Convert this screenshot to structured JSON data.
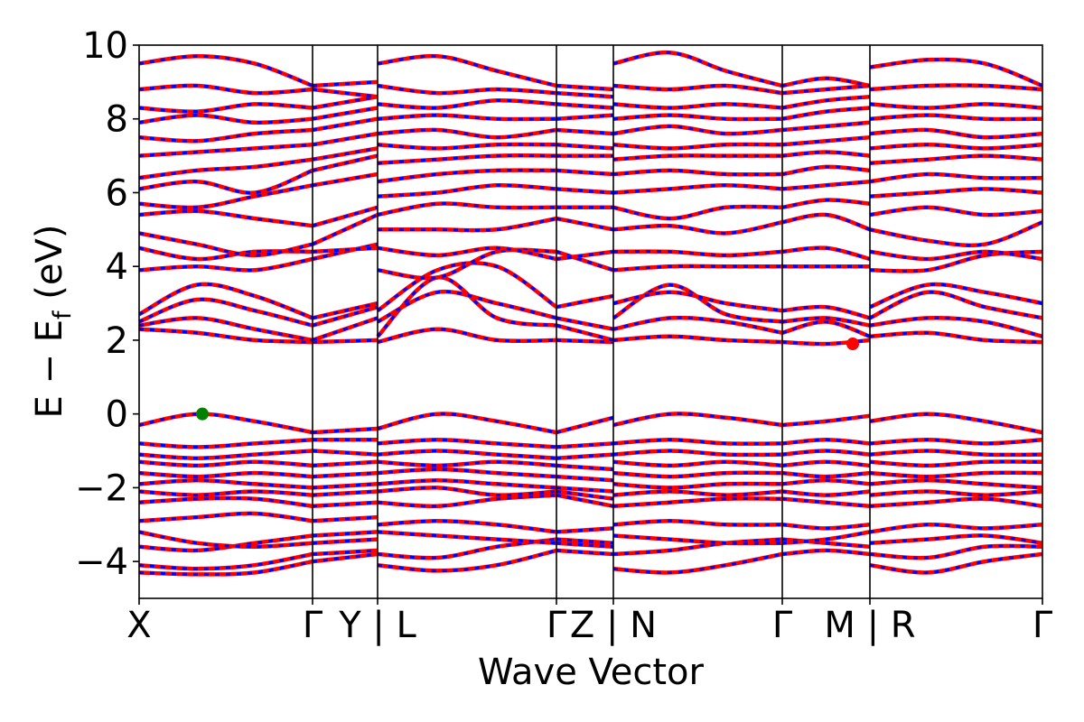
{
  "chart_data": {
    "type": "line",
    "title": "",
    "xlabel": "Wave Vector",
    "ylabel": "E − E",
    "ylabel_sub": "f",
    "ylabel_unit": " (eV)",
    "ylim": [
      -5,
      10
    ],
    "yticks": [
      -4,
      -2,
      0,
      2,
      4,
      6,
      8,
      10
    ],
    "ytick_labels": [
      "−4",
      "−2",
      "0",
      "2",
      "4",
      "6",
      "8",
      "10"
    ],
    "xlim": [
      0,
      1
    ],
    "kpath_breaks": [
      0,
      0.192,
      0.264,
      0.462,
      0.525,
      0.712,
      0.809,
      1
    ],
    "xtick_positions": [
      0,
      0.192,
      0.264,
      0.462,
      0.525,
      0.712,
      0.809,
      1
    ],
    "xtick_labels": [
      "X",
      "Γ",
      "Y | L",
      "Γ",
      "Z | N",
      "Γ",
      "M | R",
      "Γ"
    ],
    "grid": false,
    "series_style": {
      "up_color": "#ff0000",
      "down_color": "#0000ff",
      "down_dash": "dashed"
    },
    "valence_band_max": {
      "x": 0.07,
      "y": 0.0,
      "color": "#008000"
    },
    "conduction_band_min": {
      "x": 0.79,
      "y": 1.9,
      "color": "#ff0000"
    },
    "segments": [
      {
        "x0": 0.0,
        "x1": 0.192,
        "bands": [
          [
            -4.3,
            -4.35,
            -4.3,
            -4.0
          ],
          [
            -4.1,
            -4.2,
            -4.1,
            -3.8
          ],
          [
            -3.6,
            -3.7,
            -3.5,
            -3.3
          ],
          [
            -3.2,
            -3.5,
            -3.6,
            -3.5
          ],
          [
            -2.9,
            -2.8,
            -2.7,
            -2.9
          ],
          [
            -2.4,
            -2.3,
            -2.3,
            -2.5
          ],
          [
            -2.1,
            -2.2,
            -2.1,
            -2.2
          ],
          [
            -1.9,
            -1.8,
            -1.9,
            -2.0
          ],
          [
            -1.6,
            -1.7,
            -1.6,
            -1.7
          ],
          [
            -1.3,
            -1.4,
            -1.3,
            -1.4
          ],
          [
            -1.1,
            -1.2,
            -1.1,
            -1.0
          ],
          [
            -0.8,
            -0.9,
            -0.8,
            -0.7
          ],
          [
            -0.3,
            0.0,
            -0.2,
            -0.5
          ],
          [
            2.3,
            2.2,
            2.0,
            1.95
          ],
          [
            2.4,
            2.6,
            2.3,
            2.0
          ],
          [
            2.5,
            3.1,
            2.8,
            2.4
          ],
          [
            2.7,
            3.5,
            3.2,
            2.6
          ],
          [
            3.9,
            4.0,
            3.9,
            4.2
          ],
          [
            4.5,
            4.2,
            4.4,
            4.4
          ],
          [
            4.9,
            4.6,
            4.3,
            4.6
          ],
          [
            5.4,
            5.5,
            5.3,
            5.1
          ],
          [
            5.7,
            5.6,
            5.9,
            6.2
          ],
          [
            6.1,
            6.3,
            6.0,
            6.6
          ],
          [
            6.4,
            6.6,
            6.7,
            6.9
          ],
          [
            7.0,
            7.1,
            7.2,
            7.3
          ],
          [
            7.5,
            7.4,
            7.6,
            7.7
          ],
          [
            7.9,
            8.1,
            7.9,
            8.0
          ],
          [
            8.3,
            8.2,
            8.4,
            8.3
          ],
          [
            8.8,
            8.9,
            8.7,
            8.8
          ],
          [
            9.5,
            9.7,
            9.5,
            8.9
          ]
        ]
      },
      {
        "x0": 0.192,
        "x1": 0.264,
        "bands": [
          [
            -4.0,
            -3.8
          ],
          [
            -3.8,
            -3.7
          ],
          [
            -3.3,
            -3.2
          ],
          [
            -3.5,
            -3.4
          ],
          [
            -2.9,
            -2.8
          ],
          [
            -2.5,
            -2.4
          ],
          [
            -2.2,
            -2.1
          ],
          [
            -2.0,
            -1.9
          ],
          [
            -1.7,
            -1.6
          ],
          [
            -1.4,
            -1.3
          ],
          [
            -1.0,
            -1.1
          ],
          [
            -0.7,
            -0.7
          ],
          [
            -0.5,
            -0.4
          ],
          [
            1.95,
            2.0
          ],
          [
            2.0,
            2.6
          ],
          [
            2.4,
            2.9
          ],
          [
            2.6,
            3.0
          ],
          [
            4.2,
            4.6
          ],
          [
            4.4,
            4.5
          ],
          [
            4.6,
            5.4
          ],
          [
            5.1,
            5.6
          ],
          [
            6.2,
            6.5
          ],
          [
            6.6,
            7.0
          ],
          [
            6.9,
            7.2
          ],
          [
            7.3,
            7.6
          ],
          [
            7.7,
            8.0
          ],
          [
            8.0,
            8.3
          ],
          [
            8.3,
            8.6
          ],
          [
            8.8,
            8.6
          ],
          [
            8.9,
            9.0
          ]
        ]
      },
      {
        "x0": 0.264,
        "x1": 0.462,
        "bands": [
          [
            -4.1,
            -4.25,
            -4.1,
            -3.7
          ],
          [
            -3.8,
            -3.9,
            -3.6,
            -3.4
          ],
          [
            -3.2,
            -3.3,
            -3.4,
            -3.5
          ],
          [
            -3.0,
            -2.9,
            -3.0,
            -3.2
          ],
          [
            -2.4,
            -2.5,
            -2.3,
            -2.2
          ],
          [
            -2.1,
            -2.0,
            -2.2,
            -2.1
          ],
          [
            -1.9,
            -1.8,
            -1.9,
            -2.0
          ],
          [
            -1.6,
            -1.5,
            -1.6,
            -1.7
          ],
          [
            -1.3,
            -1.4,
            -1.3,
            -1.4
          ],
          [
            -1.1,
            -1.0,
            -1.1,
            -1.2
          ],
          [
            -0.8,
            -0.7,
            -0.8,
            -0.9
          ],
          [
            -0.4,
            0.0,
            -0.2,
            -0.5
          ],
          [
            1.95,
            2.3,
            2.0,
            2.0
          ],
          [
            2.1,
            3.7,
            2.6,
            2.4
          ],
          [
            2.5,
            3.3,
            3.0,
            2.6
          ],
          [
            2.8,
            3.9,
            4.0,
            2.9
          ],
          [
            3.9,
            3.7,
            4.4,
            4.4
          ],
          [
            4.5,
            4.3,
            4.5,
            4.2
          ],
          [
            5.0,
            5.0,
            5.0,
            5.3
          ],
          [
            5.4,
            5.7,
            5.6,
            5.6
          ],
          [
            5.9,
            6.0,
            6.2,
            6.1
          ],
          [
            6.3,
            6.5,
            6.6,
            6.6
          ],
          [
            6.8,
            6.9,
            7.0,
            7.0
          ],
          [
            7.3,
            7.2,
            7.3,
            7.3
          ],
          [
            7.6,
            7.7,
            7.5,
            7.7
          ],
          [
            8.0,
            8.1,
            8.0,
            8.0
          ],
          [
            8.4,
            8.3,
            8.5,
            8.4
          ],
          [
            8.9,
            8.7,
            8.8,
            8.7
          ],
          [
            9.5,
            9.7,
            9.3,
            8.9
          ]
        ]
      },
      {
        "x0": 0.462,
        "x1": 0.525,
        "bands": [
          [
            -3.7,
            -3.8
          ],
          [
            -3.4,
            -3.5
          ],
          [
            -3.5,
            -3.6
          ],
          [
            -3.2,
            -3.1
          ],
          [
            -2.2,
            -2.5
          ],
          [
            -2.1,
            -2.3
          ],
          [
            -2.0,
            -2.1
          ],
          [
            -1.7,
            -1.8
          ],
          [
            -1.4,
            -1.5
          ],
          [
            -1.2,
            -1.1
          ],
          [
            -0.9,
            -0.8
          ],
          [
            -0.5,
            -0.1
          ],
          [
            2.0,
            1.95
          ],
          [
            2.4,
            2.0
          ],
          [
            2.6,
            2.3
          ],
          [
            2.9,
            3.2
          ],
          [
            4.4,
            3.9
          ],
          [
            4.2,
            4.4
          ],
          [
            5.3,
            5.0
          ],
          [
            5.6,
            5.6
          ],
          [
            6.1,
            6.0
          ],
          [
            6.6,
            6.5
          ],
          [
            7.0,
            7.0
          ],
          [
            7.3,
            7.2
          ],
          [
            7.7,
            7.6
          ],
          [
            8.0,
            8.1
          ],
          [
            8.4,
            8.3
          ],
          [
            8.7,
            8.6
          ],
          [
            8.9,
            8.8
          ]
        ]
      },
      {
        "x0": 0.525,
        "x1": 0.712,
        "bands": [
          [
            -4.2,
            -4.3,
            -4.1,
            -3.8
          ],
          [
            -3.8,
            -3.7,
            -3.5,
            -3.4
          ],
          [
            -3.3,
            -3.4,
            -3.5,
            -3.5
          ],
          [
            -3.0,
            -2.9,
            -3.0,
            -3.0
          ],
          [
            -2.5,
            -2.4,
            -2.3,
            -2.3
          ],
          [
            -2.2,
            -2.1,
            -2.2,
            -2.1
          ],
          [
            -1.9,
            -2.0,
            -1.9,
            -1.9
          ],
          [
            -1.6,
            -1.7,
            -1.6,
            -1.6
          ],
          [
            -1.3,
            -1.4,
            -1.3,
            -1.4
          ],
          [
            -1.1,
            -1.0,
            -1.1,
            -1.1
          ],
          [
            -0.8,
            -0.7,
            -0.8,
            -0.8
          ],
          [
            -0.3,
            0.0,
            -0.1,
            -0.3
          ],
          [
            2.0,
            2.1,
            2.0,
            1.95
          ],
          [
            2.3,
            2.6,
            2.5,
            2.2
          ],
          [
            2.6,
            3.5,
            2.7,
            2.5
          ],
          [
            3.0,
            3.3,
            3.0,
            2.8
          ],
          [
            3.9,
            4.0,
            4.0,
            4.0
          ],
          [
            4.4,
            4.4,
            4.3,
            4.4
          ],
          [
            5.0,
            5.1,
            4.9,
            5.2
          ],
          [
            5.6,
            5.3,
            5.6,
            5.6
          ],
          [
            6.0,
            6.1,
            6.2,
            6.1
          ],
          [
            6.5,
            6.6,
            6.5,
            6.5
          ],
          [
            6.9,
            7.0,
            7.0,
            7.0
          ],
          [
            7.3,
            7.2,
            7.3,
            7.3
          ],
          [
            7.6,
            7.8,
            7.6,
            7.7
          ],
          [
            8.0,
            8.1,
            8.0,
            8.0
          ],
          [
            8.4,
            8.3,
            8.4,
            8.3
          ],
          [
            8.9,
            8.8,
            8.9,
            8.7
          ],
          [
            9.5,
            9.8,
            9.3,
            8.9
          ]
        ]
      },
      {
        "x0": 0.712,
        "x1": 0.809,
        "bands": [
          [
            -3.8,
            -3.7,
            -3.8
          ],
          [
            -3.4,
            -3.5,
            -3.6
          ],
          [
            -3.5,
            -3.4,
            -3.2
          ],
          [
            -3.0,
            -3.1,
            -3.0
          ],
          [
            -2.3,
            -2.4,
            -2.5
          ],
          [
            -2.1,
            -2.2,
            -2.1
          ],
          [
            -1.9,
            -1.8,
            -1.9
          ],
          [
            -1.6,
            -1.7,
            -1.6
          ],
          [
            -1.4,
            -1.3,
            -1.4
          ],
          [
            -1.1,
            -1.0,
            -1.1
          ],
          [
            -0.8,
            -0.7,
            -0.8
          ],
          [
            -0.3,
            -0.2,
            -0.05
          ],
          [
            1.95,
            1.9,
            2.0
          ],
          [
            2.2,
            2.5,
            2.1
          ],
          [
            2.5,
            2.6,
            2.4
          ],
          [
            2.8,
            2.9,
            2.6
          ],
          [
            4.0,
            4.0,
            4.0
          ],
          [
            4.4,
            4.5,
            4.2
          ],
          [
            5.2,
            5.4,
            5.0
          ],
          [
            5.6,
            5.8,
            5.7
          ],
          [
            6.1,
            6.2,
            6.3
          ],
          [
            6.5,
            6.7,
            6.6
          ],
          [
            7.0,
            7.1,
            7.0
          ],
          [
            7.3,
            7.4,
            7.5
          ],
          [
            7.7,
            7.8,
            7.9
          ],
          [
            8.0,
            8.2,
            8.3
          ],
          [
            8.3,
            8.5,
            8.6
          ],
          [
            8.7,
            8.8,
            8.9
          ],
          [
            8.9,
            9.1,
            8.9
          ]
        ]
      },
      {
        "x0": 0.809,
        "x1": 1.0,
        "bands": [
          [
            -4.1,
            -4.3,
            -4.0,
            -3.8
          ],
          [
            -3.8,
            -3.9,
            -3.6,
            -3.6
          ],
          [
            -3.5,
            -3.4,
            -3.3,
            -3.5
          ],
          [
            -3.2,
            -3.0,
            -3.1,
            -3.0
          ],
          [
            -2.5,
            -2.4,
            -2.3,
            -2.5
          ],
          [
            -2.2,
            -2.1,
            -2.2,
            -2.1
          ],
          [
            -1.9,
            -1.8,
            -1.9,
            -2.0
          ],
          [
            -1.6,
            -1.7,
            -1.6,
            -1.6
          ],
          [
            -1.3,
            -1.4,
            -1.3,
            -1.3
          ],
          [
            -1.1,
            -1.0,
            -1.1,
            -1.1
          ],
          [
            -0.8,
            -0.7,
            -0.8,
            -0.7
          ],
          [
            -0.2,
            0.0,
            -0.2,
            -0.5
          ],
          [
            2.1,
            2.2,
            2.0,
            1.95
          ],
          [
            2.4,
            2.6,
            2.5,
            2.1
          ],
          [
            2.6,
            3.3,
            2.9,
            2.6
          ],
          [
            2.9,
            3.5,
            3.3,
            3.0
          ],
          [
            3.9,
            3.9,
            4.3,
            4.4
          ],
          [
            4.4,
            4.2,
            4.4,
            4.2
          ],
          [
            5.0,
            4.7,
            4.6,
            5.2
          ],
          [
            5.4,
            5.6,
            5.4,
            5.5
          ],
          [
            5.9,
            6.0,
            6.1,
            6.0
          ],
          [
            6.3,
            6.5,
            6.4,
            6.4
          ],
          [
            6.8,
            6.9,
            7.0,
            6.9
          ],
          [
            7.2,
            7.3,
            7.2,
            7.3
          ],
          [
            7.6,
            7.7,
            7.5,
            7.6
          ],
          [
            8.0,
            8.1,
            8.0,
            8.0
          ],
          [
            8.4,
            8.3,
            8.4,
            8.3
          ],
          [
            8.8,
            8.9,
            8.9,
            8.8
          ],
          [
            9.4,
            9.6,
            9.5,
            8.9
          ]
        ]
      }
    ]
  }
}
